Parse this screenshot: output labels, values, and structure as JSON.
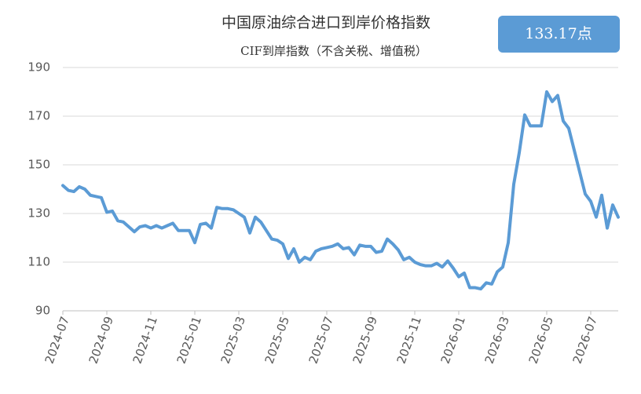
{
  "chart_data": {
    "type": "line",
    "title": "中国原油综合进口到岸价格指数",
    "subtitle": "CIF到岸指数（不含关税、增值税）",
    "badge": "133.17点",
    "categories": [
      "2024-07",
      null,
      null,
      null,
      null,
      null,
      null,
      null,
      "2024-09",
      null,
      null,
      null,
      null,
      null,
      null,
      null,
      "2024-11",
      null,
      null,
      null,
      null,
      null,
      null,
      null,
      "2025-01",
      null,
      null,
      null,
      null,
      null,
      null,
      null,
      "2025-03",
      null,
      null,
      null,
      null,
      null,
      null,
      null,
      "2025-05",
      null,
      null,
      null,
      null,
      null,
      null,
      null,
      "2025-07",
      null,
      null,
      null,
      null,
      null,
      null,
      null,
      "2025-09",
      null,
      null,
      null,
      null,
      null,
      null,
      null,
      "2025-11",
      null,
      null,
      null,
      null,
      null,
      null,
      null,
      "2026-01",
      null,
      null,
      null,
      null,
      null,
      null,
      null,
      "2026-03",
      null,
      null,
      null,
      null,
      null,
      null,
      null,
      "2026-05",
      null,
      null,
      null,
      null,
      null,
      null,
      null,
      "2026-07",
      null,
      null,
      null,
      null,
      null
    ],
    "series": [
      {
        "color": "#5b9bd5",
        "values": [
          141.5,
          139.5,
          139,
          141,
          140,
          137.5,
          137,
          136.5,
          130.5,
          131,
          127,
          126.5,
          124.5,
          122.5,
          124.5,
          125,
          124,
          125,
          124,
          125,
          126,
          123,
          123,
          123,
          118,
          125.5,
          126,
          124,
          132.5,
          132,
          132,
          131.5,
          130,
          128.5,
          122,
          128.5,
          126.5,
          123,
          119.5,
          119,
          117.5,
          111.5,
          115.5,
          110,
          112,
          111,
          114.5,
          115.5,
          116,
          116.5,
          117.5,
          115.5,
          116,
          113,
          117,
          116.5,
          116.5,
          114,
          114.5,
          119.5,
          117.5,
          115,
          111,
          112,
          110,
          109,
          108.5,
          108.5,
          109.5,
          108,
          110.5,
          107.5,
          104,
          105.5,
          99.5,
          99.5,
          99,
          101.5,
          101,
          106,
          108,
          118,
          142,
          155,
          170.5,
          166,
          166,
          166,
          180,
          176,
          178.5,
          168,
          165,
          156,
          147,
          138,
          135,
          128.5,
          137.5,
          124,
          133.5,
          128.5
        ]
      }
    ],
    "ylim": [
      90,
      190
    ],
    "yticks": [
      90,
      110,
      130,
      150,
      170,
      190
    ],
    "grid": true
  }
}
